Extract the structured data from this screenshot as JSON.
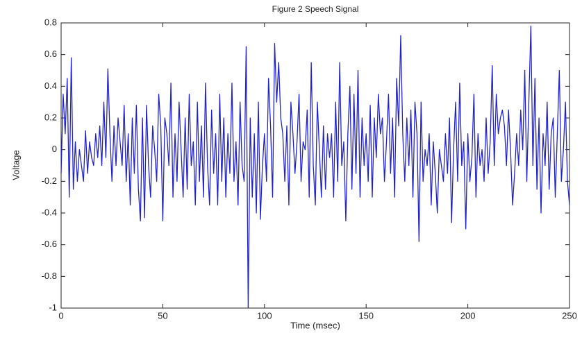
{
  "chart_data": {
    "type": "line",
    "title": "Figure 2 Speech Signal",
    "x_label": "Time (msec)",
    "y_label": "Voltage",
    "xlim": [
      0,
      250
    ],
    "ylim": [
      -1,
      0.8
    ],
    "xticks": [
      0,
      50,
      100,
      150,
      200,
      250
    ],
    "yticks": [
      -1,
      -0.8,
      -0.6,
      -0.4,
      -0.2,
      0,
      0.2,
      0.4,
      0.6,
      0.8
    ],
    "grid": false,
    "x": [
      0,
      1,
      2,
      3,
      4,
      5,
      6,
      7,
      8,
      9,
      10,
      11,
      12,
      13,
      14,
      15,
      16,
      17,
      18,
      19,
      20,
      21,
      22,
      23,
      24,
      25,
      26,
      27,
      28,
      29,
      30,
      31,
      32,
      33,
      34,
      35,
      36,
      37,
      38,
      39,
      40,
      41,
      42,
      43,
      44,
      45,
      46,
      47,
      48,
      49,
      50,
      51,
      52,
      53,
      54,
      55,
      56,
      57,
      58,
      59,
      60,
      61,
      62,
      63,
      64,
      65,
      66,
      67,
      68,
      69,
      70,
      71,
      72,
      73,
      74,
      75,
      76,
      77,
      78,
      79,
      80,
      81,
      82,
      83,
      84,
      85,
      86,
      87,
      88,
      89,
      90,
      91,
      92,
      93,
      94,
      95,
      96,
      97,
      98,
      99,
      100,
      101,
      102,
      103,
      104,
      105,
      106,
      107,
      108,
      109,
      110,
      111,
      112,
      113,
      114,
      115,
      116,
      117,
      118,
      119,
      120,
      121,
      122,
      123,
      124,
      125,
      126,
      127,
      128,
      129,
      130,
      131,
      132,
      133,
      134,
      135,
      136,
      137,
      138,
      139,
      140,
      141,
      142,
      143,
      144,
      145,
      146,
      147,
      148,
      149,
      150,
      151,
      152,
      153,
      154,
      155,
      156,
      157,
      158,
      159,
      160,
      161,
      162,
      163,
      164,
      165,
      166,
      167,
      168,
      169,
      170,
      171,
      172,
      173,
      174,
      175,
      176,
      177,
      178,
      179,
      180,
      181,
      182,
      183,
      184,
      185,
      186,
      187,
      188,
      189,
      190,
      191,
      192,
      193,
      194,
      195,
      196,
      197,
      198,
      199,
      200,
      201,
      202,
      203,
      204,
      205,
      206,
      207,
      208,
      209,
      210,
      211,
      212,
      213,
      214,
      215,
      216,
      217,
      218,
      219,
      220,
      221,
      222,
      223,
      224,
      225,
      226,
      227,
      228,
      229,
      230,
      231,
      232,
      233,
      234,
      235,
      236,
      237,
      238,
      239,
      240,
      241,
      242,
      243,
      244,
      245,
      246,
      247,
      248,
      249,
      250
    ],
    "series": [
      {
        "color": "#2222cc",
        "values": [
          -0.15,
          0.35,
          0.1,
          0.45,
          -0.3,
          0.58,
          -0.25,
          0.05,
          -0.2,
          0.0,
          -0.1,
          -0.2,
          0.12,
          -0.15,
          0.05,
          -0.05,
          -0.1,
          0.1,
          -0.05,
          0.15,
          -0.1,
          0.3,
          -0.05,
          0.51,
          0.1,
          -0.2,
          0.15,
          -0.1,
          0.2,
          0.05,
          -0.1,
          0.28,
          -0.2,
          0.1,
          -0.35,
          0.2,
          -0.15,
          0.28,
          -0.25,
          -0.45,
          0.2,
          -0.43,
          0.28,
          -0.1,
          -0.3,
          0.15,
          0.0,
          -0.2,
          0.35,
          0.15,
          -0.45,
          0.2,
          0.1,
          -0.1,
          0.42,
          -0.3,
          0.1,
          -0.2,
          0.3,
          0.0,
          -0.3,
          0.2,
          -0.25,
          0.35,
          -0.1,
          0.05,
          -0.35,
          0.3,
          -0.2,
          0.15,
          -0.3,
          0.42,
          -0.1,
          -0.35,
          0.25,
          -0.15,
          0.1,
          -0.35,
          0.35,
          -0.2,
          0.2,
          -0.3,
          0.1,
          -0.15,
          0.42,
          -0.2,
          0.05,
          -0.35,
          0.3,
          -0.1,
          -0.2,
          0.65,
          -1.0,
          0.2,
          -0.3,
          0.1,
          -0.4,
          0.3,
          -0.44,
          -0.1,
          0.1,
          -0.2,
          0.45,
          0.15,
          -0.3,
          0.67,
          0.3,
          0.55,
          0.2,
          0.1,
          -0.2,
          0.15,
          -0.35,
          0.3,
          0.1,
          -0.15,
          0.05,
          0.35,
          -0.2,
          0.05,
          0.0,
          0.25,
          -0.3,
          0.55,
          -0.1,
          -0.35,
          0.3,
          0.0,
          -0.3,
          0.15,
          -0.25,
          0.1,
          -0.05,
          0.1,
          -0.3,
          0.3,
          -0.2,
          0.55,
          -0.1,
          0.05,
          -0.45,
          0.1,
          0.4,
          -0.25,
          0.35,
          -0.15,
          0.5,
          -0.3,
          0.2,
          -0.1,
          0.1,
          -0.2,
          0.28,
          -0.3,
          0.2,
          -0.05,
          0.35,
          0.1,
          0.2,
          -0.2,
          0.05,
          0.35,
          -0.15,
          0.2,
          -0.3,
          0.45,
          0.15,
          0.72,
          0.1,
          -0.2,
          0.2,
          -0.1,
          0.25,
          -0.3,
          0.3,
          0.1,
          -0.58,
          0.3,
          -0.2,
          0.0,
          -0.1,
          0.1,
          -0.35,
          0.05,
          -0.15,
          -0.4,
          0.0,
          -0.1,
          -0.2,
          0.1,
          -0.15,
          0.2,
          -0.46,
          0.0,
          0.3,
          -0.2,
          0.42,
          -0.1,
          0.05,
          -0.5,
          0.1,
          -0.2,
          -0.05,
          0.35,
          -0.3,
          0.1,
          -0.1,
          0.0,
          -0.2,
          0.2,
          -0.15,
          0.05,
          0.53,
          -0.1,
          0.35,
          0.1,
          0.2,
          0.25,
          0.15,
          -0.1,
          0.25,
          0.0,
          -0.35,
          -0.15,
          0.1,
          -0.1,
          0.25,
          0.0,
          0.5,
          -0.2,
          0.3,
          0.78,
          -0.1,
          0.45,
          -0.25,
          0.2,
          -0.4,
          0.1,
          -0.1,
          0.3,
          -0.25,
          0.1,
          0.2,
          -0.3,
          0.1,
          0.5,
          -0.2,
          0.0,
          0.3,
          -0.2,
          -0.35
        ]
      }
    ]
  }
}
